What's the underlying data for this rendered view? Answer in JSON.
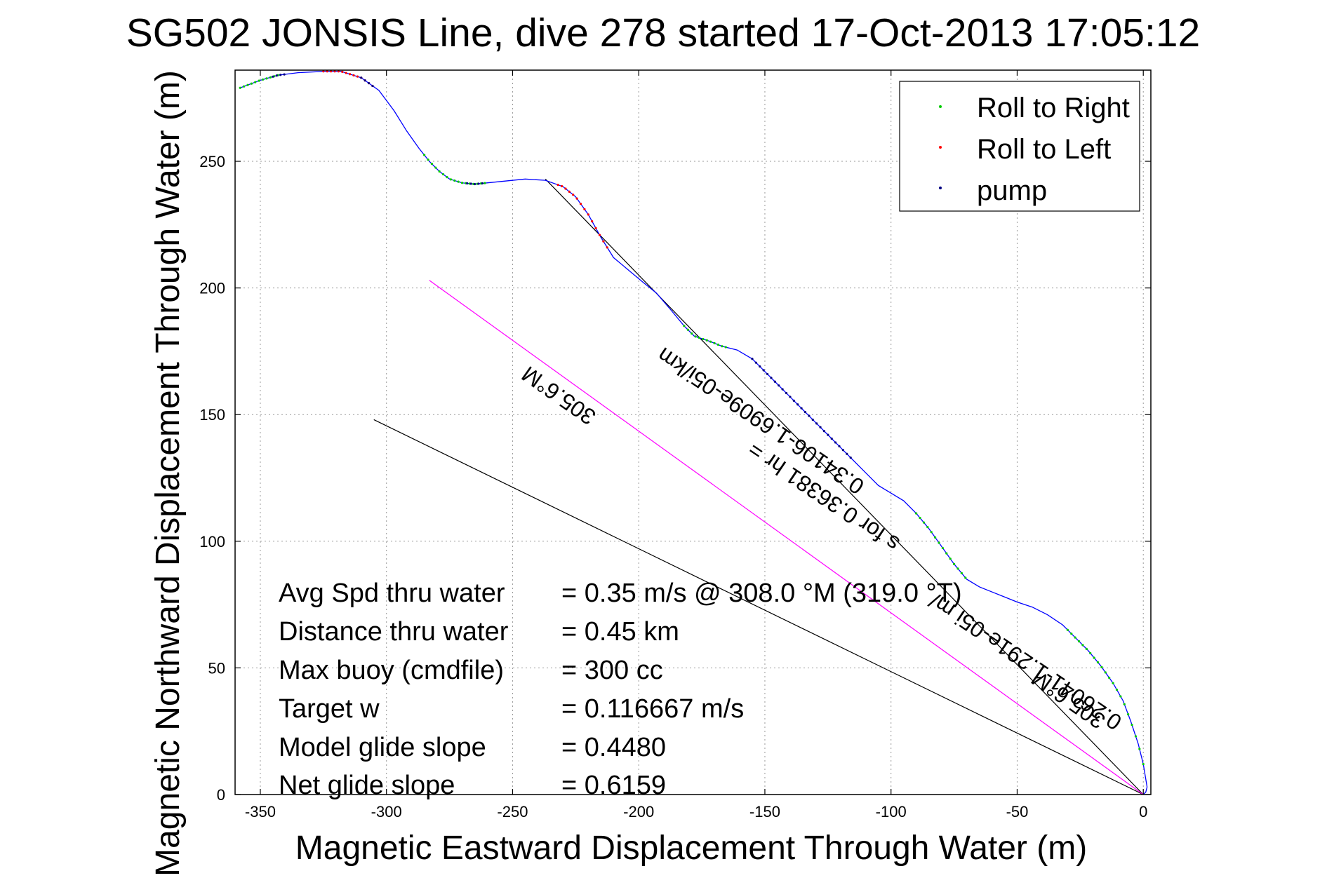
{
  "chart_data": {
    "type": "line",
    "title": "SG502 JONSIS Line, dive 278 started 17-Oct-2013 17:05:12",
    "xlabel": "Magnetic Eastward Displacement Through Water (m)",
    "ylabel": "Magnetic Northward Displacement Through Water (m)",
    "xlim": [
      -360,
      3
    ],
    "ylim": [
      0,
      286
    ],
    "xticks": [
      -350,
      -300,
      -250,
      -200,
      -150,
      -100,
      -50,
      0
    ],
    "yticks": [
      0,
      50,
      100,
      150,
      200,
      250
    ],
    "grid": true,
    "legend_position": "top-right",
    "legend": [
      {
        "label": "Roll to Right",
        "color": "#00cc00"
      },
      {
        "label": "Roll to Left",
        "color": "#ff0000"
      },
      {
        "label": "pump",
        "color": "#000080"
      }
    ],
    "track": {
      "color": "#0000ff",
      "x": [
        -358,
        -350,
        -343,
        -335,
        -325,
        -318,
        -310,
        -303,
        -297,
        -292,
        -287,
        -283,
        -279,
        -275,
        -270,
        -265,
        -255,
        -245,
        -237,
        -230,
        -225,
        -220,
        -215,
        -210,
        -204,
        -198,
        -193,
        -187,
        -182,
        -178,
        -172,
        -167,
        -161,
        -155,
        -150,
        -145,
        -140,
        -135,
        -130,
        -125,
        -120,
        -115,
        -110,
        -105,
        -100,
        -95,
        -90,
        -85,
        -80,
        -75,
        -70,
        -65,
        -60,
        -55,
        -50,
        -44,
        -38,
        -32,
        -27,
        -22,
        -17,
        -12,
        -8,
        -5,
        -2,
        0,
        1,
        1.5,
        1,
        0
      ],
      "y": [
        279,
        282,
        284,
        285,
        285.5,
        285.5,
        283,
        278,
        270,
        262,
        255,
        250,
        246,
        243,
        241.5,
        241,
        242,
        243,
        242.5,
        240,
        236,
        229,
        220,
        212,
        207,
        202,
        198,
        191,
        185,
        181,
        179,
        177,
        175.5,
        172,
        167,
        162,
        157,
        152,
        147,
        142,
        137,
        132,
        127,
        122,
        119,
        116,
        111,
        105,
        98,
        91,
        85,
        82,
        80,
        78,
        76,
        74,
        71,
        67,
        62,
        57,
        51,
        44,
        37,
        29,
        20,
        12,
        6,
        3,
        1,
        0
      ]
    },
    "roll_right_segments": [
      [
        -358,
        -343
      ],
      [
        -285,
        -260
      ],
      [
        -182,
        -165
      ],
      [
        -90,
        -70
      ],
      [
        -30,
        0
      ]
    ],
    "roll_left_segments": [
      [
        -325,
        -305
      ],
      [
        -232,
        -212
      ]
    ],
    "pump_segments": [
      [
        -345,
        -340
      ],
      [
        -268,
        -262
      ],
      [
        -155,
        -115
      ],
      [
        -310,
        -305
      ]
    ],
    "reference_lines": [
      {
        "x": [
          -237,
          0
        ],
        "y": [
          243,
          0
        ],
        "color": "#000000"
      },
      {
        "x": [
          -305,
          0
        ],
        "y": [
          148,
          0
        ],
        "color": "#000000"
      },
      {
        "x": [
          -283,
          0
        ],
        "y": [
          203,
          0
        ],
        "color": "#ff00ff"
      }
    ],
    "annotations": [
      {
        "text": "305.6°M",
        "x": -230,
        "y": 160,
        "angle": 215
      },
      {
        "text": "0.34106-1.6909e-05i/km",
        "x": -150,
        "y": 150,
        "angle": 214
      },
      {
        "text": "s for 0.36381 hr = ",
        "x": -125,
        "y": 120,
        "angle": 214
      },
      {
        "text": "0.26041-1.291e-05i m/",
        "x": -45,
        "y": 55,
        "angle": 214
      },
      {
        "text": "305.6°M",
        "x": -28,
        "y": 40,
        "angle": 215
      }
    ]
  },
  "stats": [
    {
      "label": "Avg Spd thru water",
      "value": "=  0.35 m/s @ 308.0 °M (319.0 °T)"
    },
    {
      "label": "Distance thru water",
      "value": "=  0.45 km"
    },
    {
      "label": "Max buoy (cmdfile)",
      "value": "= 300 cc"
    },
    {
      "label": "Target w",
      "value": "= 0.116667 m/s"
    },
    {
      "label": "Model glide slope",
      "value": "= 0.4480"
    },
    {
      "label": "Net glide slope",
      "value": "= 0.6159"
    }
  ]
}
